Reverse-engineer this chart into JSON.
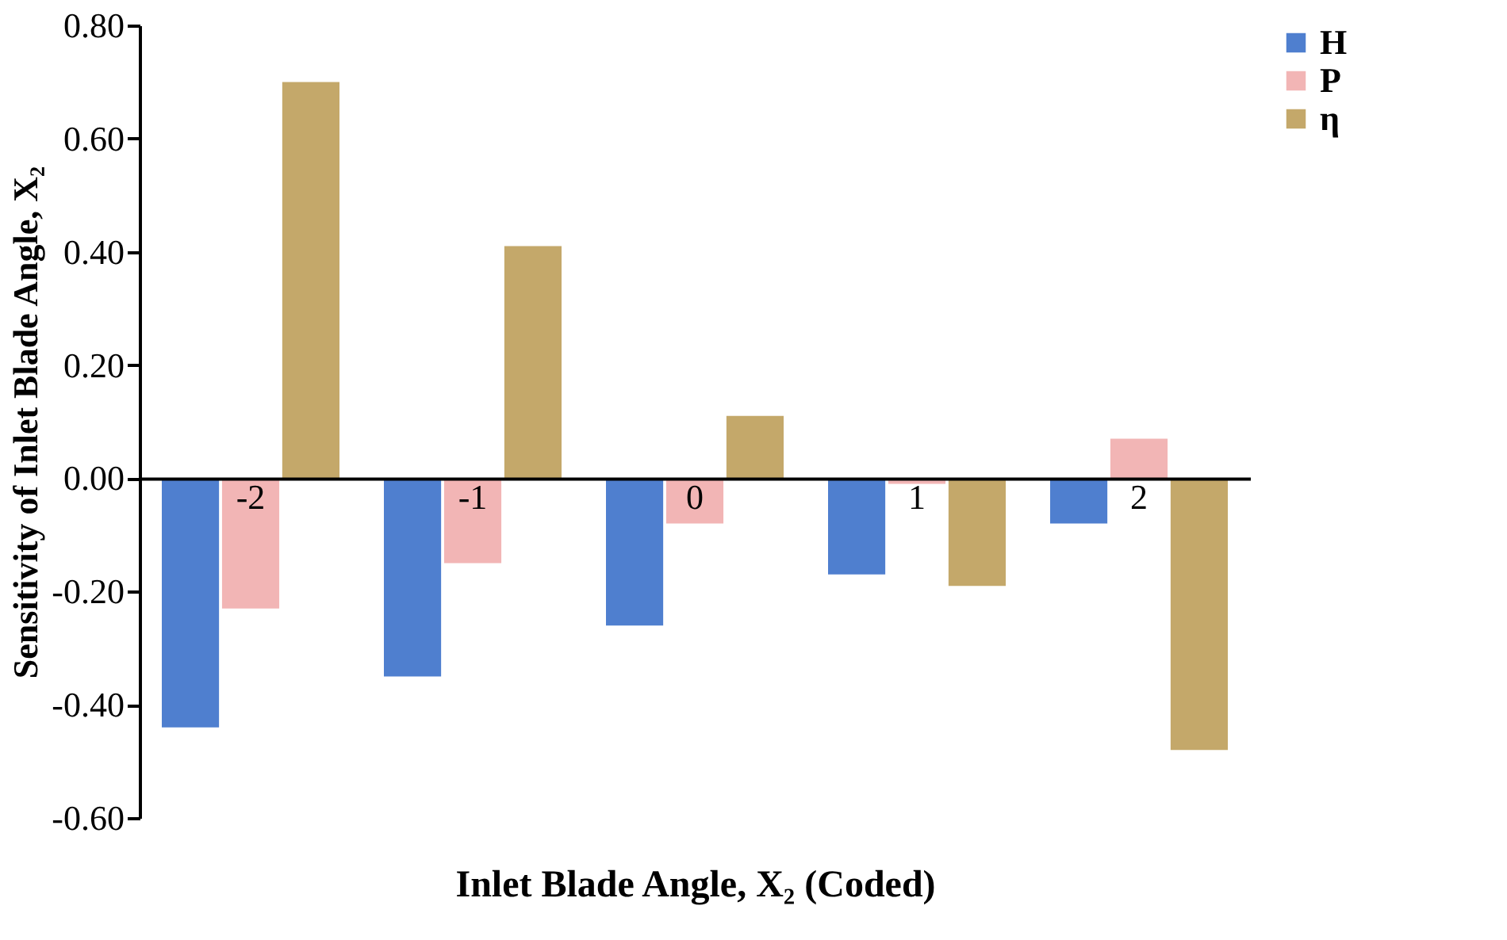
{
  "chart_data": {
    "type": "bar",
    "xlabel": "Inlet Blade Angle, X₂ (Coded)",
    "ylabel": "Sensitivity of Inlet Blade Angle, X₂",
    "categories": [
      "-2",
      "-1",
      "0",
      "1",
      "2"
    ],
    "series": [
      {
        "name": "H",
        "color": "#4f7fcf",
        "values": [
          -0.44,
          -0.35,
          -0.26,
          -0.17,
          -0.08
        ]
      },
      {
        "name": "P",
        "color": "#f2b5b5",
        "values": [
          -0.23,
          -0.15,
          -0.08,
          -0.01,
          0.07
        ]
      },
      {
        "name": "η",
        "color": "#c4a86a",
        "values": [
          0.7,
          0.41,
          0.11,
          -0.19,
          -0.48
        ]
      }
    ],
    "ylim": [
      -0.6,
      0.8
    ],
    "yticks": [
      {
        "value": -0.6,
        "label": "-0.60"
      },
      {
        "value": -0.4,
        "label": "-0.40"
      },
      {
        "value": -0.2,
        "label": "-0.20"
      },
      {
        "value": 0,
        "label": "0.00"
      },
      {
        "value": 0.2,
        "label": "0.20"
      },
      {
        "value": 0.4,
        "label": "0.40"
      },
      {
        "value": 0.6,
        "label": "0.60"
      },
      {
        "value": 0.8,
        "label": "0.80"
      }
    ],
    "grid": false,
    "legend": "right"
  }
}
